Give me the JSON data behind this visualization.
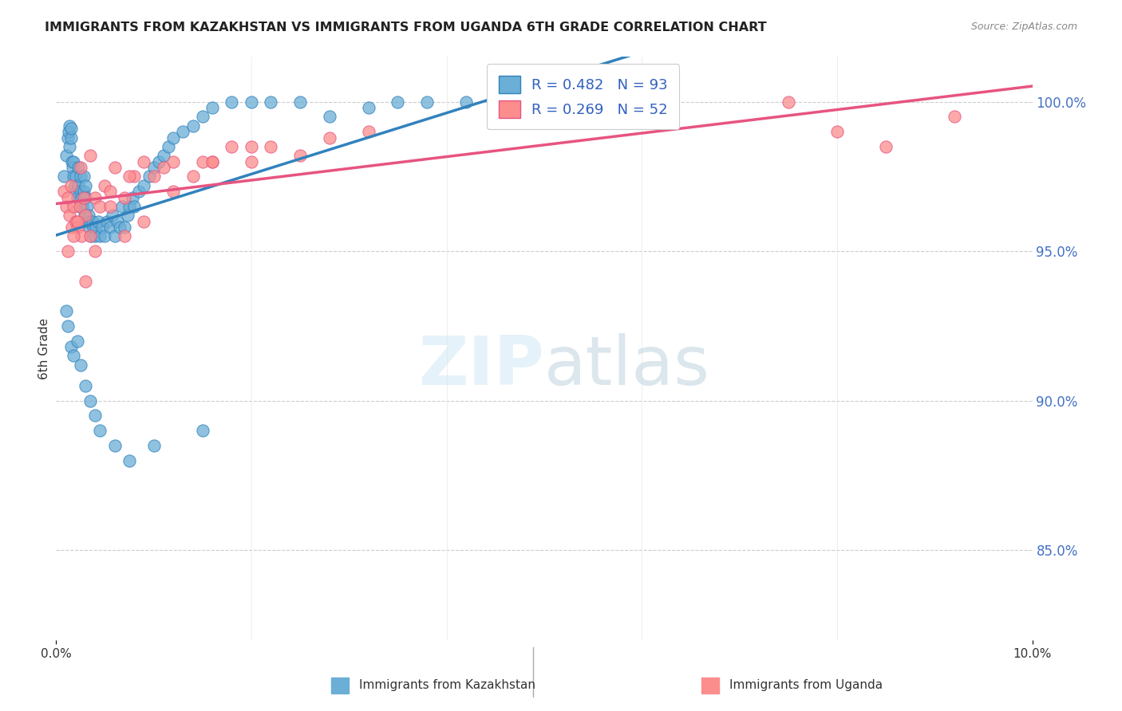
{
  "title": "IMMIGRANTS FROM KAZAKHSTAN VS IMMIGRANTS FROM UGANDA 6TH GRADE CORRELATION CHART",
  "source": "Source: ZipAtlas.com",
  "ylabel": "6th Grade",
  "right_yticks": [
    85.0,
    90.0,
    95.0,
    100.0
  ],
  "xlim": [
    0.0,
    10.0
  ],
  "ylim": [
    82.0,
    101.5
  ],
  "kaz_color": "#6baed6",
  "uga_color": "#fc8d8d",
  "kaz_line_color": "#3182bd",
  "uga_line_color": "#e75480",
  "background_color": "#ffffff",
  "grid_color": "#cccccc",
  "kaz_x": [
    0.08,
    0.1,
    0.12,
    0.13,
    0.14,
    0.14,
    0.15,
    0.15,
    0.16,
    0.17,
    0.18,
    0.18,
    0.19,
    0.2,
    0.21,
    0.22,
    0.23,
    0.23,
    0.24,
    0.25,
    0.25,
    0.26,
    0.27,
    0.28,
    0.28,
    0.29,
    0.3,
    0.3,
    0.31,
    0.32,
    0.33,
    0.34,
    0.35,
    0.36,
    0.37,
    0.38,
    0.4,
    0.41,
    0.43,
    0.45,
    0.47,
    0.5,
    0.52,
    0.55,
    0.58,
    0.6,
    0.63,
    0.65,
    0.68,
    0.7,
    0.73,
    0.75,
    0.78,
    0.8,
    0.85,
    0.9,
    0.95,
    1.0,
    1.05,
    1.1,
    1.15,
    1.2,
    1.3,
    1.4,
    1.5,
    1.6,
    1.8,
    2.0,
    2.2,
    2.5,
    0.1,
    0.12,
    0.15,
    0.18,
    0.22,
    0.25,
    0.3,
    0.35,
    0.4,
    0.45,
    0.6,
    0.75,
    1.0,
    1.5,
    2.8,
    3.2,
    3.5,
    3.8,
    4.2,
    4.5,
    5.0,
    5.5,
    6.0
  ],
  "kaz_y": [
    97.5,
    98.2,
    98.8,
    99.0,
    99.2,
    98.5,
    98.8,
    99.1,
    98.0,
    97.8,
    97.5,
    98.0,
    97.2,
    97.5,
    97.0,
    96.8,
    97.2,
    97.8,
    96.5,
    97.0,
    97.5,
    96.8,
    96.5,
    97.0,
    97.5,
    96.2,
    96.8,
    97.2,
    96.0,
    96.5,
    96.2,
    95.8,
    96.0,
    95.5,
    96.0,
    95.8,
    95.5,
    95.8,
    96.0,
    95.5,
    95.8,
    95.5,
    96.0,
    95.8,
    96.2,
    95.5,
    96.0,
    95.8,
    96.5,
    95.8,
    96.2,
    96.5,
    96.8,
    96.5,
    97.0,
    97.2,
    97.5,
    97.8,
    98.0,
    98.2,
    98.5,
    98.8,
    99.0,
    99.2,
    99.5,
    99.8,
    100.0,
    100.0,
    100.0,
    100.0,
    93.0,
    92.5,
    91.8,
    91.5,
    92.0,
    91.2,
    90.5,
    90.0,
    89.5,
    89.0,
    88.5,
    88.0,
    88.5,
    89.0,
    99.5,
    99.8,
    100.0,
    100.0,
    100.0,
    100.0,
    100.0,
    100.0,
    100.0
  ],
  "uga_x": [
    0.08,
    0.1,
    0.12,
    0.14,
    0.16,
    0.18,
    0.2,
    0.22,
    0.24,
    0.26,
    0.28,
    0.3,
    0.35,
    0.4,
    0.45,
    0.5,
    0.6,
    0.7,
    0.8,
    0.9,
    1.0,
    1.2,
    1.4,
    1.6,
    1.8,
    2.0,
    2.2,
    2.5,
    2.8,
    3.2,
    0.15,
    0.25,
    0.35,
    0.55,
    0.75,
    1.1,
    1.5,
    2.0,
    0.12,
    0.18,
    0.22,
    0.3,
    0.4,
    0.55,
    0.7,
    0.9,
    1.2,
    1.6,
    7.5,
    8.0,
    8.5,
    9.2
  ],
  "uga_y": [
    97.0,
    96.5,
    96.8,
    96.2,
    95.8,
    96.5,
    96.0,
    95.8,
    96.5,
    95.5,
    96.8,
    96.2,
    95.5,
    96.8,
    96.5,
    97.2,
    97.8,
    96.8,
    97.5,
    98.0,
    97.5,
    98.0,
    97.5,
    98.0,
    98.5,
    98.0,
    98.5,
    98.2,
    98.8,
    99.0,
    97.2,
    97.8,
    98.2,
    97.0,
    97.5,
    97.8,
    98.0,
    98.5,
    95.0,
    95.5,
    96.0,
    94.0,
    95.0,
    96.5,
    95.5,
    96.0,
    97.0,
    98.0,
    100.0,
    99.0,
    98.5,
    99.5
  ]
}
